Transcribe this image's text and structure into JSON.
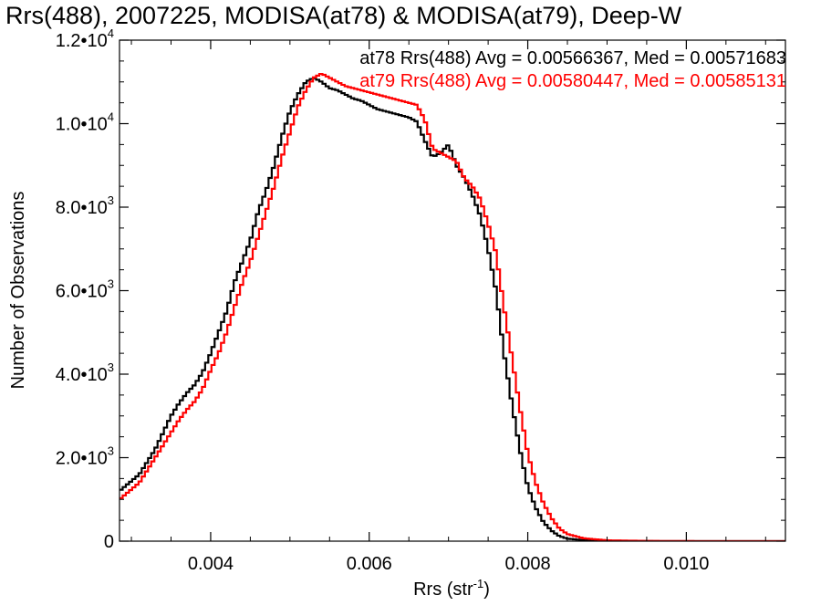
{
  "chart_data": {
    "type": "line",
    "title": "Rrs(488), 2007225, MODISA(at78) & MODISA(at79), Deep-W",
    "xlabel": "Rrs (str",
    "xlabel_sup": "-1",
    "xlabel_close": ")",
    "ylabel": "Number of Observations",
    "xlim": [
      0.00285,
      0.01125
    ],
    "ylim": [
      0,
      12000
    ],
    "x_ticks": [
      {
        "value": 0.004,
        "label": "0.004"
      },
      {
        "value": 0.006,
        "label": "0.006"
      },
      {
        "value": 0.008,
        "label": "0.008"
      },
      {
        "value": 0.01,
        "label": "0.010"
      }
    ],
    "y_ticks": [
      {
        "value": 0,
        "mant": "0",
        "exp": ""
      },
      {
        "value": 2000,
        "mant": "2.0•10",
        "exp": "3"
      },
      {
        "value": 4000,
        "mant": "4.0•10",
        "exp": "3"
      },
      {
        "value": 6000,
        "mant": "6.0•10",
        "exp": "3"
      },
      {
        "value": 8000,
        "mant": "8.0•10",
        "exp": "3"
      },
      {
        "value": 10000,
        "mant": "1.0•10",
        "exp": "4"
      },
      {
        "value": 12000,
        "mant": "1.2•10",
        "exp": "4"
      }
    ],
    "legend_placement": "top-right",
    "series": [
      {
        "name": "at78 Rrs(488) Avg = 0.00566367, Med = 0.00571683",
        "color": "#000000",
        "x": [
          0.00285,
          0.0031,
          0.0033,
          0.0035,
          0.0036,
          0.0037,
          0.0038,
          0.0039,
          0.004,
          0.0041,
          0.0042,
          0.0043,
          0.0044,
          0.0045,
          0.0046,
          0.0047,
          0.0048,
          0.0049,
          0.005,
          0.0051,
          0.0052,
          0.0053,
          0.0054,
          0.0055,
          0.0056,
          0.0057,
          0.0058,
          0.0059,
          0.006,
          0.0061,
          0.0062,
          0.0063,
          0.0064,
          0.0065,
          0.0066,
          0.0067,
          0.0068,
          0.0069,
          0.007,
          0.0071,
          0.0072,
          0.0073,
          0.0074,
          0.0075,
          0.0076,
          0.0077,
          0.0078,
          0.0079,
          0.008,
          0.0081,
          0.0082,
          0.0083,
          0.0084,
          0.0085,
          0.0087,
          0.009,
          0.0095,
          0.01,
          0.01125
        ],
        "y": [
          1200,
          1600,
          2200,
          3000,
          3300,
          3550,
          3750,
          4050,
          4500,
          5000,
          5500,
          6200,
          6700,
          7200,
          7900,
          8400,
          9000,
          9700,
          10300,
          10700,
          11000,
          11100,
          11000,
          10850,
          10800,
          10700,
          10600,
          10550,
          10450,
          10350,
          10300,
          10250,
          10200,
          10150,
          10050,
          9600,
          9200,
          9300,
          9500,
          9000,
          8700,
          8300,
          7800,
          7000,
          6000,
          4500,
          3300,
          2200,
          1300,
          800,
          450,
          250,
          120,
          60,
          25,
          8,
          2,
          1,
          0
        ]
      },
      {
        "name": "at79 Rrs(488) Avg = 0.00580447, Med = 0.00585131",
        "color": "#ff0000",
        "x": [
          0.00285,
          0.0031,
          0.0033,
          0.0035,
          0.0036,
          0.0037,
          0.0038,
          0.0039,
          0.004,
          0.0041,
          0.0042,
          0.0043,
          0.0044,
          0.0045,
          0.0046,
          0.0047,
          0.0048,
          0.0049,
          0.005,
          0.0051,
          0.0052,
          0.0053,
          0.0054,
          0.0055,
          0.0056,
          0.0057,
          0.0058,
          0.0059,
          0.006,
          0.0061,
          0.0062,
          0.0063,
          0.0064,
          0.0065,
          0.0066,
          0.0067,
          0.0068,
          0.0069,
          0.007,
          0.0071,
          0.0072,
          0.0073,
          0.0074,
          0.0075,
          0.0076,
          0.0077,
          0.0078,
          0.0079,
          0.008,
          0.0081,
          0.0082,
          0.0083,
          0.0084,
          0.0085,
          0.0087,
          0.009,
          0.0095,
          0.01,
          0.01125
        ],
        "y": [
          1000,
          1400,
          2000,
          2600,
          2900,
          3150,
          3350,
          3650,
          4100,
          4500,
          5000,
          5600,
          6200,
          6700,
          7300,
          7900,
          8500,
          9200,
          9800,
          10400,
          10800,
          11100,
          11200,
          11100,
          11000,
          10900,
          10850,
          10800,
          10750,
          10700,
          10650,
          10600,
          10550,
          10500,
          10450,
          10100,
          9400,
          9300,
          9200,
          9100,
          8700,
          8500,
          8200,
          7600,
          6900,
          5600,
          4400,
          3200,
          2100,
          1400,
          900,
          550,
          300,
          170,
          70,
          20,
          6,
          2,
          0
        ]
      }
    ]
  }
}
